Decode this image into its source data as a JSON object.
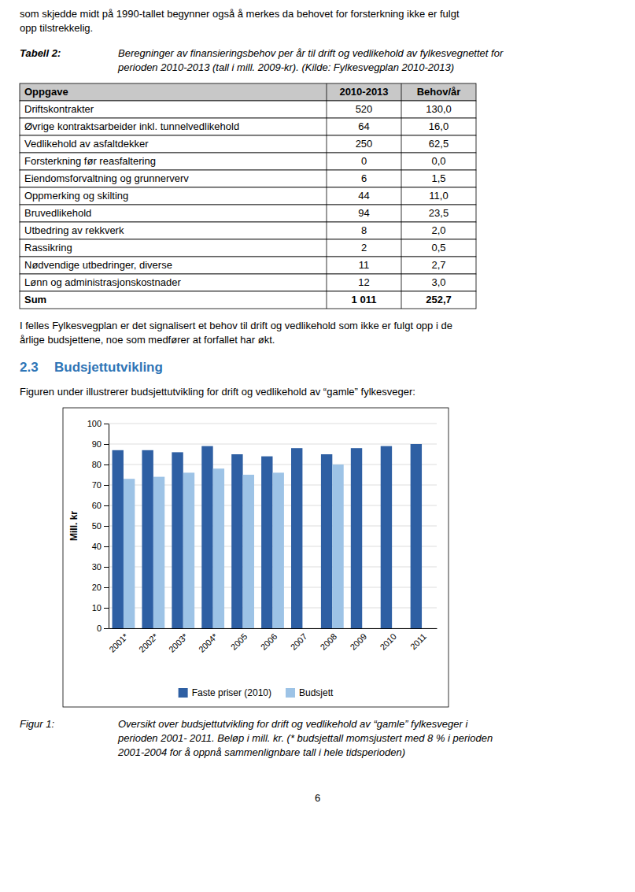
{
  "page": {
    "text_top": [
      "som skjedde midt på 1990-tallet begynner også å merkes da behovet for forsterkning ikke er fulgt",
      "opp tilstrekkelig."
    ],
    "table_label": "Tabell 2:",
    "table_caption": [
      "Beregninger av finansieringsbehov per år til drift og vedlikehold av fylkesvegnettet for",
      "perioden 2010-2013 (tall i mill. 2009-kr). (Kilde: Fylkesvegplan 2010-2013)"
    ],
    "paragraph": [
      "I felles Fylkesvegplan er det signalisert et behov til drift og vedlikehold som ikke er fulgt opp i de",
      "årlige budsjettene, noe som medfører at forfallet har økt."
    ],
    "section_number": "2.3",
    "section_title": "Budsjettutvikling",
    "heading_color": "#2E75B6",
    "section_intro": "Figuren under illustrerer budsjettutvikling for drift og vedlikehold av “gamle” fylkesveger:",
    "figure_label": "Figur 1:",
    "figure_caption": [
      "Oversikt over budsjettutvikling for drift og vedlikehold av “gamle” fylkesveger i",
      "perioden 2001- 2011. Beløp i mill. kr. (* budsjettall momsjustert med 8 % i perioden",
      "2001-2004 for å oppnå sammenlignbare tall i hele tidsperioden)"
    ],
    "page_number": "6"
  },
  "table": {
    "headers": [
      "Oppgave",
      "2010-2013",
      "Behov/år"
    ],
    "header_color": "#C8C8C8",
    "rows": [
      [
        "Driftskontrakter",
        "520",
        "130,0"
      ],
      [
        "Øvrige kontraktsarbeider inkl. tunnelvedlikehold",
        "64",
        "16,0"
      ],
      [
        "Vedlikehold av asfaltdekker",
        "250",
        "62,5"
      ],
      [
        "Forsterkning før reasfaltering",
        "0",
        "0,0"
      ],
      [
        "Eiendomsforvaltning og grunnerverv",
        "6",
        "1,5"
      ],
      [
        "Oppmerking og skilting",
        "44",
        "11,0"
      ],
      [
        "Bruvedlikehold",
        "94",
        "23,5"
      ],
      [
        "Utbedring av rekkverk",
        "8",
        "2,0"
      ],
      [
        "Rassikring",
        "2",
        "0,5"
      ],
      [
        "Nødvendige utbedringer, diverse",
        "11",
        "2,7"
      ],
      [
        "Lønn og administrasjonskostnader",
        "12",
        "3,0"
      ],
      [
        "Sum",
        "1 011",
        "252,7"
      ]
    ]
  },
  "chart_data": {
    "type": "bar",
    "y_label": "Mill. kr",
    "categories": [
      "2001*",
      "2002*",
      "2003*",
      "2004*",
      "2005",
      "2006",
      "2007",
      "2008",
      "2009",
      "2010",
      "2011"
    ],
    "series": [
      {
        "name": "Faste priser (2010)",
        "color": "#2E5FA3",
        "values": [
          87,
          87,
          86,
          89,
          85,
          84,
          88,
          85,
          88,
          89,
          90
        ]
      },
      {
        "name": "Budsjett",
        "color": "#9DC3E6",
        "values": [
          73,
          74,
          76,
          78,
          75,
          76,
          null,
          80,
          null,
          null,
          null
        ]
      }
    ],
    "ylim": [
      0,
      100
    ],
    "yticks": [
      0,
      10,
      20,
      30,
      40,
      50,
      60,
      70,
      80,
      90,
      100
    ],
    "grid": true,
    "legend": "bottom"
  }
}
